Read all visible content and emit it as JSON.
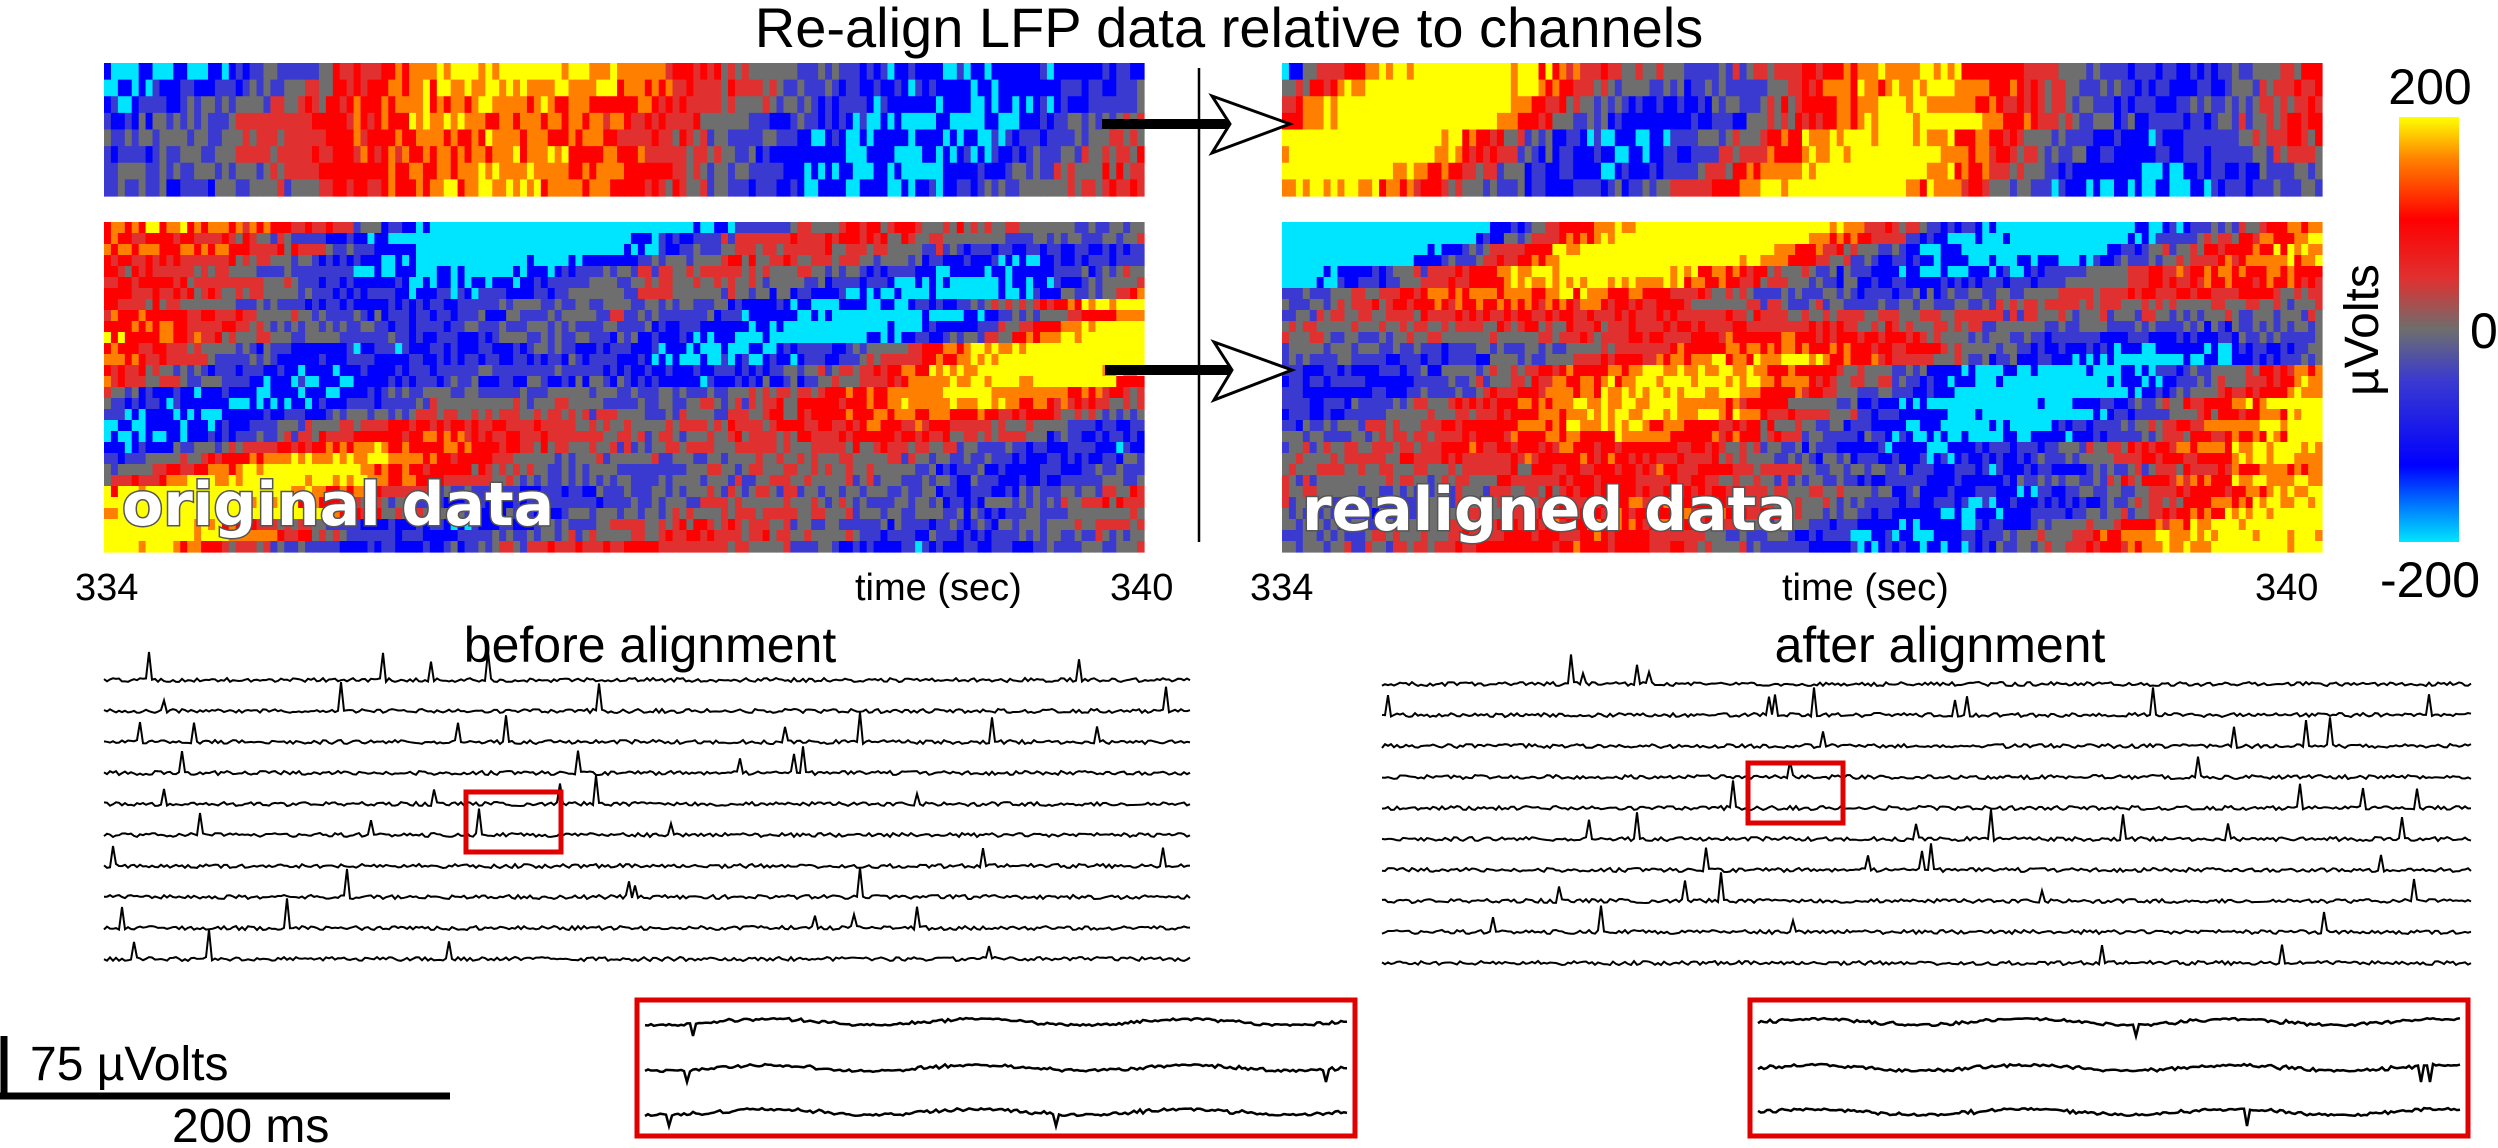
{
  "title": "Re-align LFP data relative to channels",
  "heatmaps": {
    "original": {
      "label": "original data",
      "x_start": "334",
      "x_end": "340",
      "xlabel": "time (sec)"
    },
    "realigned": {
      "label": "realigned data",
      "x_start": "334",
      "x_end": "340",
      "xlabel": "time (sec)"
    }
  },
  "colorbar": {
    "max_label": "200",
    "mid_label": "0",
    "min_label": "-200",
    "unit": "µVolts",
    "colors": [
      "#00e5ff",
      "#0000ff",
      "#3a3ad0",
      "#6e6e6e",
      "#e03030",
      "#ff0000",
      "#ff8000",
      "#ffff00"
    ]
  },
  "traces": {
    "before": {
      "title": "before alignment"
    },
    "after": {
      "title": "after alignment"
    }
  },
  "scalebar": {
    "voltage": "75 µVolts",
    "time": "200 ms"
  },
  "colors": {
    "highlight_box": "#e00000",
    "trace": "#000000",
    "axis": "#000000"
  },
  "chart_data": [
    {
      "type": "heatmap",
      "title": "original data",
      "xlabel": "time (sec)",
      "xlim": [
        334,
        340
      ],
      "clim": [
        -200,
        200
      ],
      "zlabel": "µVolts"
    },
    {
      "type": "heatmap",
      "title": "realigned data",
      "xlabel": "time (sec)",
      "xlim": [
        334,
        340
      ],
      "clim": [
        -200,
        200
      ],
      "zlabel": "µVolts"
    },
    {
      "type": "line",
      "title": "before alignment",
      "series_count": 10,
      "ylabel": "75 µVolts",
      "xlabel": "200 ms"
    },
    {
      "type": "line",
      "title": "after alignment",
      "series_count": 10,
      "ylabel": "75 µVolts",
      "xlabel": "200 ms"
    }
  ]
}
